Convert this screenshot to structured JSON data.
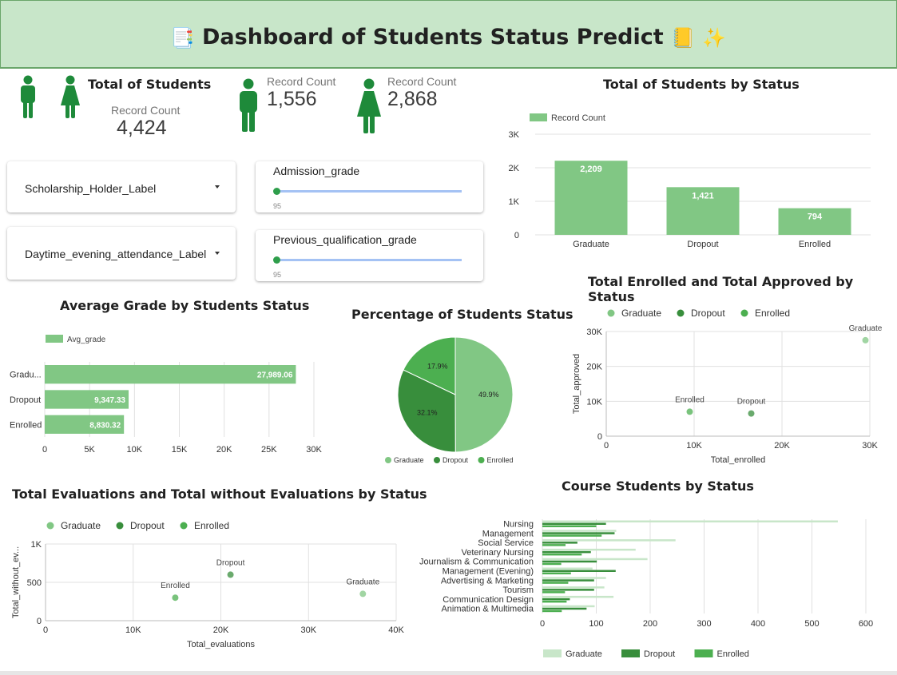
{
  "header": {
    "title": "Dashboard of Students Status Predict",
    "icon_left": "📑",
    "icon_right_1": "📒",
    "icon_right_2": "✨"
  },
  "kpis": {
    "total_title": "Total of Students",
    "total_label": "Record Count",
    "total_value": "4,424",
    "male_label": "Record Count",
    "male_value": "1,556",
    "female_label": "Record Count",
    "female_value": "2,868",
    "icons": [
      "male-person-icon",
      "female-person-icon"
    ],
    "icon_color": "#1e8a3a"
  },
  "controls": {
    "dropdown1": "Scholarship_Holder_Label",
    "dropdown2": "Daytime_evening_attendance_Label",
    "slider1_label": "Admission_grade",
    "slider1_value": "95",
    "slider2_label": "Previous_qualification_grade",
    "slider2_value": "95"
  },
  "colors": {
    "graduate": "#81c784",
    "dropout": "#388e3c",
    "enrolled": "#4caf50",
    "graduate_light": "#c8e6c9",
    "header_bg": "#c8e6c9",
    "accent": "#2e9e4b"
  },
  "chart_data": [
    {
      "id": "status_bar",
      "type": "bar",
      "title": "Total of Students by Status",
      "categories": [
        "Graduate",
        "Dropout",
        "Enrolled"
      ],
      "series": [
        {
          "name": "Record Count",
          "values": [
            2209,
            1421,
            794
          ]
        }
      ],
      "data_labels": [
        "2,209",
        "1,421",
        "794"
      ],
      "y_ticks": [
        "0",
        "1K",
        "2K",
        "3K"
      ],
      "ylim": [
        0,
        3000
      ],
      "grid": true,
      "legend": "top-left"
    },
    {
      "id": "avg_grade",
      "type": "bar",
      "orientation": "horizontal",
      "title": "Average Grade by Students Status",
      "categories": [
        "Gradu...",
        "Dropout",
        "Enrolled"
      ],
      "series": [
        {
          "name": "Avg_grade",
          "values": [
            27989.06,
            9347.33,
            8830.32
          ]
        }
      ],
      "data_labels": [
        "27,989.06",
        "9,347.33",
        "8,830.32"
      ],
      "x_ticks": [
        "0",
        "5K",
        "10K",
        "15K",
        "20K",
        "25K",
        "30K"
      ],
      "xlim": [
        0,
        30000
      ],
      "grid": true,
      "legend": "top-left"
    },
    {
      "id": "pct_pie",
      "type": "pie",
      "title": "Percentage of Students Status",
      "categories": [
        "Graduate",
        "Dropout",
        "Enrolled"
      ],
      "values": [
        49.9,
        32.1,
        17.9
      ],
      "data_labels": [
        "49.9%",
        "32.1%",
        "17.9%"
      ],
      "legend": "bottom"
    },
    {
      "id": "enrolled_approved",
      "type": "scatter",
      "title": "Total Enrolled and Total Approved by Status",
      "xlabel": "Total_enrolled",
      "ylabel": "Total_approved",
      "x_ticks": [
        "0",
        "10K",
        "20K",
        "30K"
      ],
      "y_ticks": [
        "0",
        "10K",
        "20K",
        "30K"
      ],
      "xlim": [
        0,
        30000
      ],
      "ylim": [
        0,
        30000
      ],
      "series": [
        {
          "name": "Graduate",
          "x": 29500,
          "y": 27500
        },
        {
          "name": "Dropout",
          "x": 16500,
          "y": 6500
        },
        {
          "name": "Enrolled",
          "x": 9500,
          "y": 7000
        }
      ],
      "legend": "top"
    },
    {
      "id": "evaluations",
      "type": "scatter",
      "title": "Total Evaluations and Total without Evaluations by Status",
      "xlabel": "Total_evaluations",
      "ylabel": "Total_without_ev...",
      "x_ticks": [
        "0",
        "10K",
        "20K",
        "30K",
        "40K"
      ],
      "y_ticks": [
        "0",
        "500",
        "1K"
      ],
      "xlim": [
        0,
        40000
      ],
      "ylim": [
        0,
        1000
      ],
      "series": [
        {
          "name": "Graduate",
          "x": 36200,
          "y": 350
        },
        {
          "name": "Dropout",
          "x": 21100,
          "y": 600
        },
        {
          "name": "Enrolled",
          "x": 14800,
          "y": 300
        }
      ],
      "legend": "top"
    },
    {
      "id": "course",
      "type": "bar",
      "orientation": "horizontal",
      "title": "Course Students by Status",
      "categories": [
        "Nursing",
        "Management",
        "Social Service",
        "Veterinary Nursing",
        "Journalism & Communication",
        "Management (Evening)",
        "Advertising & Marketing",
        "Tourism",
        "Communication Design",
        "Animation & Multimedia"
      ],
      "series": [
        {
          "name": "Graduate",
          "values": [
            548,
            137,
            247,
            173,
            195,
            93,
            118,
            115,
            132,
            97
          ]
        },
        {
          "name": "Dropout",
          "values": [
            118,
            134,
            65,
            90,
            101,
            136,
            96,
            96,
            51,
            82
          ]
        },
        {
          "name": "Enrolled",
          "values": [
            100,
            110,
            43,
            73,
            35,
            53,
            48,
            42,
            45,
            36
          ]
        }
      ],
      "x_ticks": [
        "0",
        "100",
        "200",
        "300",
        "400",
        "500",
        "600"
      ],
      "xlim": [
        0,
        600
      ],
      "grid": true,
      "legend": "bottom"
    }
  ]
}
